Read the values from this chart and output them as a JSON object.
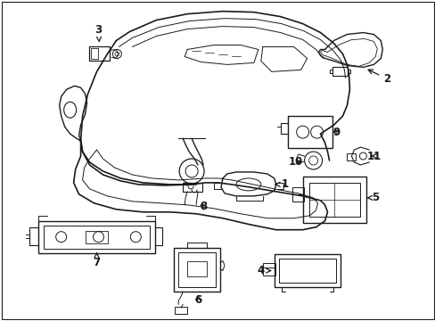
{
  "background_color": "#ffffff",
  "line_color": "#1a1a1a",
  "line_width": 0.8,
  "label_fontsize": 8.5,
  "fig_width": 4.89,
  "fig_height": 3.6,
  "dpi": 100,
  "border_color": "#cccccc"
}
